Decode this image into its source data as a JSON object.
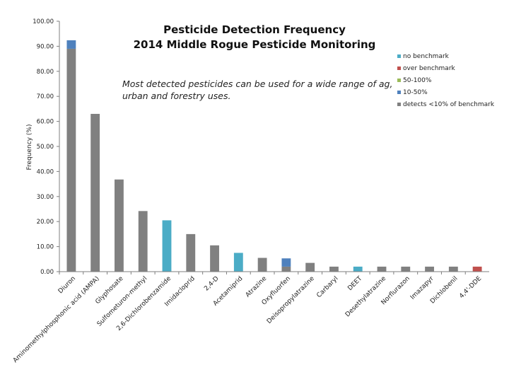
{
  "chart_data": {
    "type": "bar",
    "title": "Pesticide Detection Frequency",
    "subtitle": "2014 Middle Rogue Pesticide Monitoring",
    "ylabel": "Frequency (%)",
    "xlabel": "",
    "ylim": [
      0,
      100
    ],
    "yticks": [
      "0.00",
      "10.00",
      "20.00",
      "30.00",
      "40.00",
      "50.00",
      "60.00",
      "70.00",
      "80.00",
      "90.00",
      "100.00"
    ],
    "annotation": [
      "Most detected pesticides can be used for a wide range of ag,",
      "urban and forestry uses."
    ],
    "legend": [
      {
        "name": "no benchmark",
        "color": "#4bacc6"
      },
      {
        "name": "over benchmark",
        "color": "#c0504d"
      },
      {
        "name": "50-100%",
        "color": "#9bbb59"
      },
      {
        "name": "10-50%",
        "color": "#4f81bd"
      },
      {
        "name": "detects <10% of benchmark",
        "color": "#808080"
      }
    ],
    "categories": [
      "Diuron",
      "Aminomethylphosphonic acid (AMPA)",
      "Glyphosate",
      "Sulfometuron-methyl",
      "2,6-Dichlorobenzamide",
      "Imidacloprid",
      "2,4-D",
      "Acetamiprid",
      "Atrazine",
      "Oxyfluorfen",
      "Deisopropylatrazine",
      "Carbaryl",
      "DEET",
      "Desethylatrazine",
      "Norflurazon",
      "Imazapyr",
      "Dichlobenil",
      "4,4'-DDE"
    ],
    "series": [
      {
        "name": "detects <10% of benchmark",
        "color": "#808080",
        "values": [
          89,
          63,
          36.8,
          24.2,
          0,
          15,
          10.5,
          0,
          5.5,
          2,
          3.5,
          2,
          0,
          2,
          2,
          2,
          2,
          0
        ]
      },
      {
        "name": "10-50%",
        "color": "#4f81bd",
        "values": [
          3.4,
          0,
          0,
          0,
          0,
          0,
          0,
          0,
          0,
          3.3,
          0,
          0,
          0,
          0,
          0,
          0,
          0,
          0
        ]
      },
      {
        "name": "no benchmark",
        "color": "#4bacc6",
        "values": [
          0,
          0,
          0,
          0,
          20.5,
          0,
          0,
          7.5,
          0,
          0,
          0,
          0,
          2,
          0,
          0,
          0,
          0,
          0
        ]
      },
      {
        "name": "over benchmark",
        "color": "#c0504d",
        "values": [
          0,
          0,
          0,
          0,
          0,
          0,
          0,
          0,
          0,
          0,
          0,
          0,
          0,
          0,
          0,
          0,
          0,
          2
        ]
      }
    ]
  }
}
